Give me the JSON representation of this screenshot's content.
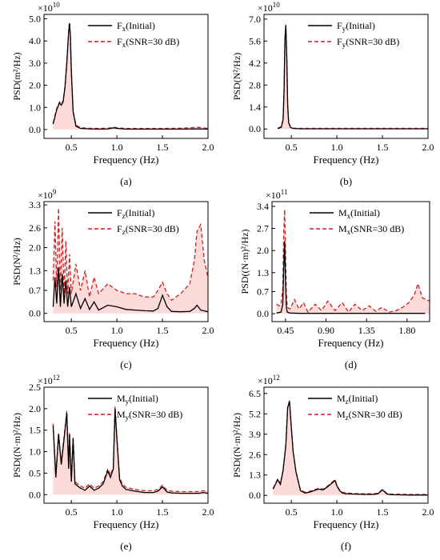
{
  "figure": {
    "panels": [
      {
        "id": "a"
      },
      {
        "id": "b"
      },
      {
        "id": "c"
      },
      {
        "id": "d"
      },
      {
        "id": "e"
      },
      {
        "id": "f"
      }
    ]
  },
  "colors": {
    "initial": "#000000",
    "snr": "#cc2222",
    "fill": "#f7bcbc"
  },
  "chart_data": [
    {
      "type": "line",
      "panel_label": "(a)",
      "xlabel": "Frequency (Hz)",
      "ylabel": "PSD(m²/Hz)",
      "multiplier": {
        "base": "×10",
        "exp": "10"
      },
      "xlim": [
        0.2,
        2.0
      ],
      "ylim": [
        -0.4,
        5.2
      ],
      "xticks": [
        0.5,
        1.0,
        1.5,
        2.0
      ],
      "xtick_labels": [
        "0.5",
        "1.0",
        "1.5",
        "2.0"
      ],
      "yticks": [
        0.0,
        1.0,
        2.0,
        3.0,
        4.0,
        5.0
      ],
      "ytick_labels": [
        "0.0",
        "1.0",
        "2.0",
        "3.0",
        "4.0",
        "5.0"
      ],
      "legend": {
        "position": "top-right",
        "entries": [
          {
            "main": "F",
            "sub": "x",
            "tail": "(Initial)"
          },
          {
            "main": "F",
            "sub": "x",
            "tail": "(SNR=30 dB)"
          }
        ]
      },
      "series": [
        {
          "name": "Fx(Initial)",
          "x": [
            0.3,
            0.34,
            0.37,
            0.39,
            0.41,
            0.43,
            0.45,
            0.47,
            0.48,
            0.49,
            0.5,
            0.52,
            0.55,
            0.6,
            0.7,
            0.8,
            0.9,
            0.97,
            1.0,
            1.1,
            1.3,
            1.5,
            1.7,
            1.9,
            2.0
          ],
          "y": [
            0.25,
            0.9,
            1.2,
            1.1,
            1.25,
            1.9,
            3.0,
            4.4,
            4.8,
            4.2,
            2.6,
            0.8,
            0.15,
            0.05,
            0.03,
            0.02,
            0.03,
            0.08,
            0.05,
            0.02,
            0.02,
            0.02,
            0.02,
            0.03,
            0.02
          ]
        },
        {
          "name": "Fx(SNR=30 dB)",
          "x": [
            0.3,
            0.34,
            0.37,
            0.39,
            0.41,
            0.43,
            0.45,
            0.47,
            0.48,
            0.49,
            0.5,
            0.52,
            0.55,
            0.6,
            0.7,
            0.8,
            0.9,
            0.97,
            1.0,
            1.1,
            1.3,
            1.5,
            1.7,
            1.9,
            2.0
          ],
          "y": [
            0.3,
            0.95,
            1.25,
            1.15,
            1.3,
            1.95,
            3.05,
            4.45,
            4.85,
            4.25,
            2.65,
            0.85,
            0.2,
            0.08,
            0.06,
            0.05,
            0.06,
            0.1,
            0.08,
            0.05,
            0.05,
            0.05,
            0.06,
            0.1,
            0.05
          ]
        }
      ]
    },
    {
      "type": "line",
      "panel_label": "(b)",
      "xlabel": "Frequency (Hz)",
      "ylabel": "PSD(N²/Hz)",
      "multiplier": {
        "base": "×10",
        "exp": "10"
      },
      "xlim": [
        0.2,
        2.0
      ],
      "ylim": [
        -0.6,
        7.3
      ],
      "xticks": [
        0.5,
        1.0,
        1.5,
        2.0
      ],
      "xtick_labels": [
        "0.5",
        "1.0",
        "1.5",
        "2.0"
      ],
      "yticks": [
        0.0,
        1.4,
        2.8,
        4.2,
        5.6,
        7.0
      ],
      "ytick_labels": [
        "0.0",
        "1.4",
        "2.8",
        "4.2",
        "5.6",
        "7.0"
      ],
      "legend": {
        "position": "top-right",
        "entries": [
          {
            "main": "F",
            "sub": "y",
            "tail": "(Initial)"
          },
          {
            "main": "F",
            "sub": "y",
            "tail": "(SNR=30 dB)"
          }
        ]
      },
      "series": [
        {
          "name": "Fy(Initial)",
          "x": [
            0.35,
            0.39,
            0.41,
            0.42,
            0.43,
            0.44,
            0.45,
            0.46,
            0.47,
            0.49,
            0.52,
            0.6,
            0.8,
            1.0,
            1.5,
            2.0
          ],
          "y": [
            0.02,
            0.1,
            0.6,
            2.5,
            5.8,
            6.6,
            4.5,
            1.5,
            0.4,
            0.1,
            0.03,
            0.01,
            0.01,
            0.01,
            0.01,
            0.01
          ]
        },
        {
          "name": "Fy(SNR=30 dB)",
          "x": [
            0.35,
            0.39,
            0.41,
            0.42,
            0.43,
            0.44,
            0.45,
            0.46,
            0.47,
            0.49,
            0.52,
            0.6,
            0.8,
            1.0,
            1.5,
            2.0
          ],
          "y": [
            0.05,
            0.15,
            0.65,
            2.55,
            5.85,
            6.65,
            4.55,
            1.55,
            0.45,
            0.15,
            0.06,
            0.04,
            0.04,
            0.04,
            0.04,
            0.04
          ]
        }
      ]
    },
    {
      "type": "line",
      "panel_label": "(c)",
      "xlabel": "Frequency (Hz)",
      "ylabel": "PSD(N²/Hz)",
      "multiplier": {
        "base": "×10",
        "exp": "9"
      },
      "xlim": [
        0.2,
        2.0
      ],
      "ylim": [
        -0.25,
        3.4
      ],
      "xticks": [
        0.5,
        1.0,
        1.5,
        2.0
      ],
      "xtick_labels": [
        "0.5",
        "1.0",
        "1.5",
        "2.0"
      ],
      "yticks": [
        0.0,
        0.7,
        1.3,
        2.0,
        2.6,
        3.3
      ],
      "ytick_labels": [
        "0.0",
        "0.7",
        "1.3",
        "2.0",
        "2.6",
        "3.3"
      ],
      "legend": {
        "position": "top-right",
        "entries": [
          {
            "main": "F",
            "sub": "z",
            "tail": "(Initial)"
          },
          {
            "main": "F",
            "sub": "z",
            "tail": "(SNR=30 dB)"
          }
        ]
      },
      "series": [
        {
          "name": "Fz(Initial)",
          "x": [
            0.3,
            0.32,
            0.34,
            0.36,
            0.38,
            0.4,
            0.42,
            0.44,
            0.46,
            0.48,
            0.5,
            0.55,
            0.6,
            0.65,
            0.7,
            0.75,
            0.8,
            0.9,
            1.0,
            1.1,
            1.2,
            1.3,
            1.4,
            1.45,
            1.5,
            1.55,
            1.6,
            1.7,
            1.8,
            1.85,
            1.88,
            1.92,
            2.0
          ],
          "y": [
            0.2,
            1.1,
            0.3,
            1.4,
            0.2,
            1.2,
            0.3,
            1.0,
            0.2,
            0.8,
            0.2,
            0.6,
            0.15,
            0.45,
            0.12,
            0.35,
            0.1,
            0.25,
            0.2,
            0.12,
            0.1,
            0.08,
            0.07,
            0.15,
            0.55,
            0.2,
            0.06,
            0.05,
            0.06,
            0.15,
            0.25,
            0.1,
            0.05
          ]
        },
        {
          "name": "Fz(SNR=30 dB)",
          "x": [
            0.3,
            0.32,
            0.34,
            0.36,
            0.38,
            0.4,
            0.42,
            0.44,
            0.46,
            0.48,
            0.5,
            0.55,
            0.6,
            0.65,
            0.7,
            0.75,
            0.8,
            0.9,
            1.0,
            1.1,
            1.2,
            1.3,
            1.4,
            1.45,
            1.5,
            1.55,
            1.6,
            1.7,
            1.8,
            1.85,
            1.88,
            1.92,
            1.96,
            2.0
          ],
          "y": [
            1.0,
            2.8,
            0.8,
            3.2,
            0.7,
            2.6,
            0.6,
            2.2,
            0.6,
            1.8,
            0.6,
            1.5,
            0.7,
            1.3,
            0.5,
            1.1,
            0.6,
            0.9,
            0.7,
            0.6,
            0.6,
            0.5,
            0.5,
            0.7,
            0.95,
            0.6,
            0.4,
            0.6,
            0.9,
            1.6,
            2.5,
            2.7,
            1.6,
            1.1
          ]
        }
      ]
    },
    {
      "type": "line",
      "panel_label": "(d)",
      "xlabel": "Frequency (Hz)",
      "ylabel": "PSD((N·m)²/Hz)",
      "multiplier": {
        "base": "×10",
        "exp": "11"
      },
      "xlim": [
        0.3,
        2.05
      ],
      "ylim": [
        -0.25,
        3.55
      ],
      "xticks": [
        0.45,
        0.9,
        1.35,
        1.8
      ],
      "xtick_labels": [
        "0.45",
        "0.90",
        "1.35",
        "1.80"
      ],
      "yticks": [
        0.0,
        0.7,
        1.3,
        2.0,
        2.7,
        3.4
      ],
      "ytick_labels": [
        "0.0",
        "0.7",
        "1.3",
        "2.0",
        "2.7",
        "3.4"
      ],
      "legend": {
        "position": "top-right",
        "entries": [
          {
            "main": "M",
            "sub": "x",
            "tail": "(Initial)"
          },
          {
            "main": "M",
            "sub": "x",
            "tail": "(SNR=30 dB)"
          }
        ]
      },
      "series": [
        {
          "name": "Mx(Initial)",
          "x": [
            0.35,
            0.4,
            0.42,
            0.43,
            0.44,
            0.45,
            0.46,
            0.47,
            0.5,
            0.6,
            0.8,
            1.0,
            1.2,
            1.4,
            1.6,
            1.8,
            2.0
          ],
          "y": [
            0.02,
            0.05,
            0.3,
            1.4,
            2.3,
            1.0,
            0.2,
            0.05,
            0.02,
            0.01,
            0.01,
            0.01,
            0.01,
            0.01,
            0.01,
            0.01,
            0.01
          ]
        },
        {
          "name": "Mx(SNR=30 dB)",
          "x": [
            0.35,
            0.38,
            0.4,
            0.42,
            0.43,
            0.44,
            0.45,
            0.46,
            0.47,
            0.5,
            0.55,
            0.6,
            0.65,
            0.7,
            0.78,
            0.85,
            0.92,
            1.0,
            1.08,
            1.15,
            1.22,
            1.3,
            1.38,
            1.45,
            1.52,
            1.6,
            1.68,
            1.75,
            1.82,
            1.88,
            1.92,
            1.97,
            2.05
          ],
          "y": [
            0.3,
            0.25,
            0.3,
            0.8,
            2.5,
            3.3,
            2.0,
            0.6,
            0.2,
            0.15,
            0.45,
            0.15,
            0.35,
            0.05,
            0.3,
            0.1,
            0.4,
            0.1,
            0.35,
            0.05,
            0.3,
            0.1,
            0.25,
            0.08,
            0.2,
            0.05,
            0.1,
            0.2,
            0.35,
            0.6,
            0.95,
            0.5,
            0.4
          ]
        }
      ]
    },
    {
      "type": "line",
      "panel_label": "(e)",
      "xlabel": "Frequency (Hz)",
      "ylabel": "PSD((N·m)²/Hz)",
      "multiplier": {
        "base": "×10",
        "exp": "12"
      },
      "xlim": [
        0.2,
        2.0
      ],
      "ylim": [
        -0.2,
        2.5
      ],
      "xticks": [
        0.5,
        1.0,
        1.5,
        2.0
      ],
      "xtick_labels": [
        "0.5",
        "1.0",
        "1.5",
        "2.0"
      ],
      "yticks": [
        0.0,
        0.5,
        1.0,
        1.5,
        2.0,
        2.5
      ],
      "ytick_labels": [
        "0.0",
        "0.5",
        "1.0",
        "1.5",
        "2.0",
        "2.5"
      ],
      "legend": {
        "position": "top-right",
        "entries": [
          {
            "main": "M",
            "sub": "y",
            "tail": "(Initial)"
          },
          {
            "main": "M",
            "sub": "y",
            "tail": "(SNR=30 dB)"
          }
        ]
      },
      "series": [
        {
          "name": "My(Initial)",
          "x": [
            0.3,
            0.33,
            0.36,
            0.39,
            0.42,
            0.45,
            0.47,
            0.48,
            0.5,
            0.52,
            0.54,
            0.57,
            0.6,
            0.65,
            0.7,
            0.75,
            0.8,
            0.85,
            0.9,
            0.93,
            0.96,
            0.98,
            1.0,
            1.03,
            1.06,
            1.1,
            1.2,
            1.3,
            1.4,
            1.45,
            1.5,
            1.55,
            1.6,
            1.7,
            1.8,
            1.9,
            1.95,
            2.0
          ],
          "y": [
            1.6,
            0.4,
            1.4,
            0.7,
            1.3,
            1.9,
            0.6,
            1.4,
            0.3,
            1.3,
            0.25,
            0.2,
            0.15,
            0.1,
            0.2,
            0.1,
            0.15,
            0.25,
            0.55,
            0.4,
            0.6,
            2.0,
            1.3,
            0.35,
            0.2,
            0.12,
            0.08,
            0.05,
            0.05,
            0.08,
            0.18,
            0.06,
            0.04,
            0.03,
            0.03,
            0.03,
            0.05,
            0.03
          ]
        },
        {
          "name": "My(SNR=30 dB)",
          "x": [
            0.3,
            0.33,
            0.36,
            0.39,
            0.42,
            0.45,
            0.47,
            0.48,
            0.5,
            0.52,
            0.54,
            0.57,
            0.6,
            0.65,
            0.7,
            0.75,
            0.8,
            0.85,
            0.9,
            0.93,
            0.96,
            0.98,
            1.0,
            1.03,
            1.06,
            1.1,
            1.2,
            1.3,
            1.4,
            1.45,
            1.5,
            1.55,
            1.6,
            1.7,
            1.8,
            1.9,
            1.95,
            2.0
          ],
          "y": [
            1.65,
            0.45,
            1.45,
            0.75,
            1.35,
            1.95,
            0.65,
            1.45,
            0.35,
            1.35,
            0.3,
            0.25,
            0.2,
            0.15,
            0.25,
            0.15,
            0.2,
            0.3,
            0.6,
            0.45,
            0.65,
            2.05,
            1.35,
            0.4,
            0.25,
            0.17,
            0.12,
            0.09,
            0.09,
            0.12,
            0.22,
            0.1,
            0.08,
            0.07,
            0.07,
            0.07,
            0.09,
            0.07
          ]
        }
      ]
    },
    {
      "type": "line",
      "panel_label": "(f)",
      "xlabel": "Frequency (Hz)",
      "ylabel": "PSD((N·m)²/Hz)",
      "multiplier": {
        "base": "×10",
        "exp": "12"
      },
      "xlim": [
        0.2,
        2.0
      ],
      "ylim": [
        -0.5,
        6.9
      ],
      "xticks": [
        0.5,
        1.0,
        1.5,
        2.0
      ],
      "xtick_labels": [
        "0.5",
        "1.0",
        "1.5",
        "2.0"
      ],
      "yticks": [
        0.0,
        1.3,
        2.6,
        3.9,
        5.2,
        6.5
      ],
      "ytick_labels": [
        "0.0",
        "1.3",
        "2.6",
        "3.9",
        "5.2",
        "6.5"
      ],
      "legend": {
        "position": "top-right",
        "entries": [
          {
            "main": "M",
            "sub": "z",
            "tail": "(Initial)"
          },
          {
            "main": "M",
            "sub": "z",
            "tail": "(SNR=30 dB)"
          }
        ]
      },
      "series": [
        {
          "name": "Mz(Initial)",
          "x": [
            0.3,
            0.35,
            0.38,
            0.41,
            0.44,
            0.46,
            0.48,
            0.49,
            0.5,
            0.52,
            0.55,
            0.6,
            0.65,
            0.7,
            0.75,
            0.8,
            0.85,
            0.9,
            0.95,
            0.98,
            1.0,
            1.03,
            1.06,
            1.1,
            1.2,
            1.3,
            1.4,
            1.45,
            1.5,
            1.55,
            1.6,
            1.8,
            2.0
          ],
          "y": [
            0.4,
            1.0,
            0.7,
            1.6,
            3.2,
            5.6,
            6.0,
            5.2,
            4.3,
            2.8,
            1.5,
            0.3,
            0.15,
            0.2,
            0.3,
            0.4,
            0.35,
            0.55,
            0.8,
            0.95,
            0.6,
            0.3,
            0.15,
            0.1,
            0.08,
            0.06,
            0.06,
            0.1,
            0.35,
            0.08,
            0.04,
            0.02,
            0.02
          ]
        },
        {
          "name": "Mz(SNR=30 dB)",
          "x": [
            0.3,
            0.35,
            0.38,
            0.41,
            0.44,
            0.46,
            0.48,
            0.49,
            0.5,
            0.52,
            0.55,
            0.6,
            0.65,
            0.7,
            0.75,
            0.8,
            0.85,
            0.9,
            0.95,
            0.98,
            1.0,
            1.03,
            1.06,
            1.1,
            1.2,
            1.3,
            1.4,
            1.45,
            1.5,
            1.55,
            1.6,
            1.8,
            2.0
          ],
          "y": [
            0.45,
            1.05,
            0.75,
            1.65,
            3.25,
            5.65,
            6.05,
            5.25,
            4.35,
            2.85,
            1.55,
            0.35,
            0.2,
            0.25,
            0.35,
            0.45,
            0.4,
            0.6,
            0.85,
            1.0,
            0.65,
            0.35,
            0.2,
            0.15,
            0.12,
            0.1,
            0.1,
            0.14,
            0.38,
            0.12,
            0.08,
            0.06,
            0.06
          ]
        }
      ]
    }
  ]
}
